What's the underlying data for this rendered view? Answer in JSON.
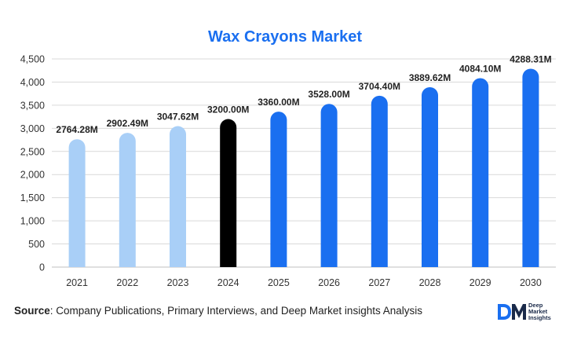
{
  "chart_data": {
    "type": "bar",
    "title": "Wax Crayons Market",
    "xlabel": "",
    "ylabel": "",
    "categories": [
      "2021",
      "2022",
      "2023",
      "2024",
      "2025",
      "2026",
      "2027",
      "2028",
      "2029",
      "2030"
    ],
    "values": [
      2764.28,
      2902.49,
      3047.62,
      3200.0,
      3360.0,
      3528.0,
      3704.4,
      3889.62,
      4084.1,
      4288.31
    ],
    "data_labels": [
      "2764.28M",
      "2902.49M",
      "3047.62M",
      "3200.00M",
      "3360.00M",
      "3528.00M",
      "3704.40M",
      "3889.62M",
      "4084.10M",
      "4288.31M"
    ],
    "bar_colors": [
      "#a9cff7",
      "#a9cff7",
      "#a9cff7",
      "#000000",
      "#1a6ff0",
      "#1a6ff0",
      "#1a6ff0",
      "#1a6ff0",
      "#1a6ff0",
      "#1a6ff0"
    ],
    "ylim": [
      0,
      4500
    ],
    "yticks": [
      0,
      500,
      1000,
      1500,
      2000,
      2500,
      3000,
      3500,
      4000,
      4500
    ],
    "ytick_labels": [
      "0",
      "500",
      "1,000",
      "1,500",
      "2,000",
      "2,500",
      "3,000",
      "3,500",
      "4,000",
      "4,500"
    ],
    "grid": true,
    "legend": "none"
  },
  "footer": {
    "source_label": "Source",
    "source_text": ": Company Publications, Primary Interviews, and Deep Market insights Analysis"
  },
  "logo": {
    "mark": "DM",
    "lines": [
      "Deep",
      "Market",
      "Insights"
    ]
  },
  "colors": {
    "title": "#1a6ff0",
    "historical": "#a9cff7",
    "base_year": "#000000",
    "forecast": "#1a6ff0",
    "grid": "#d9d9d9"
  }
}
